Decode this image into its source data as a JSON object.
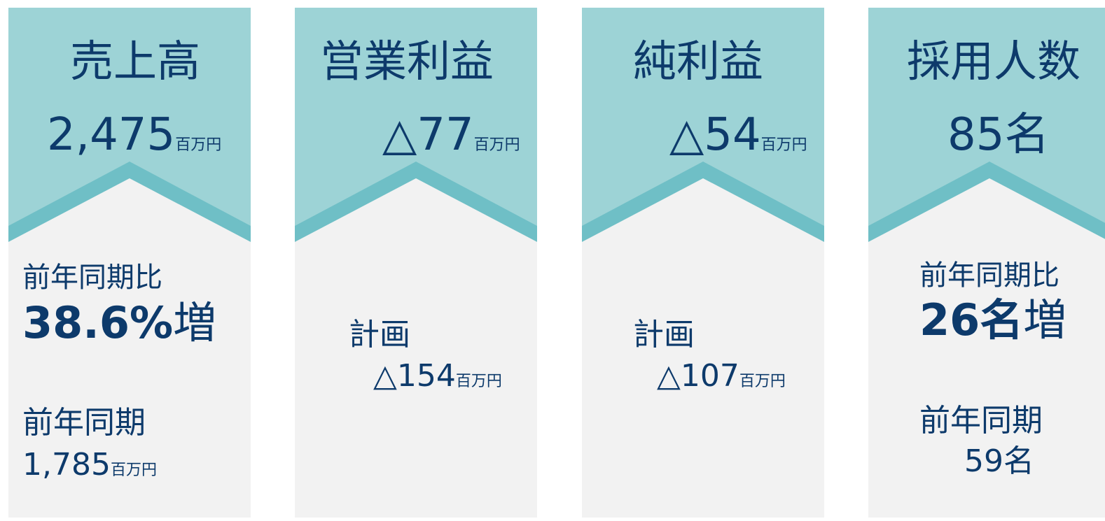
{
  "cards": [
    {
      "title": "売上高",
      "value": "2,475",
      "unit": "百万円",
      "comparison_label": "前年同期比",
      "change": "38.6%",
      "change_suffix": "増",
      "prior_label": "前年同期",
      "prior_value": "1,785",
      "prior_unit": "百万円"
    },
    {
      "title": "営業利益",
      "value": "△77",
      "unit": "百万円",
      "plan_label": "計画",
      "plan_value": "△154",
      "plan_unit": "百万円"
    },
    {
      "title": "純利益",
      "value": "△54",
      "unit": "百万円",
      "plan_label": "計画",
      "plan_value": "△107",
      "plan_unit": "百万円"
    },
    {
      "title": "採用人数",
      "value": "85名",
      "comparison_label": "前年同期比",
      "change": "26名",
      "change_suffix": "増",
      "prior_label": "前年同期",
      "prior_value": "59名"
    }
  ]
}
